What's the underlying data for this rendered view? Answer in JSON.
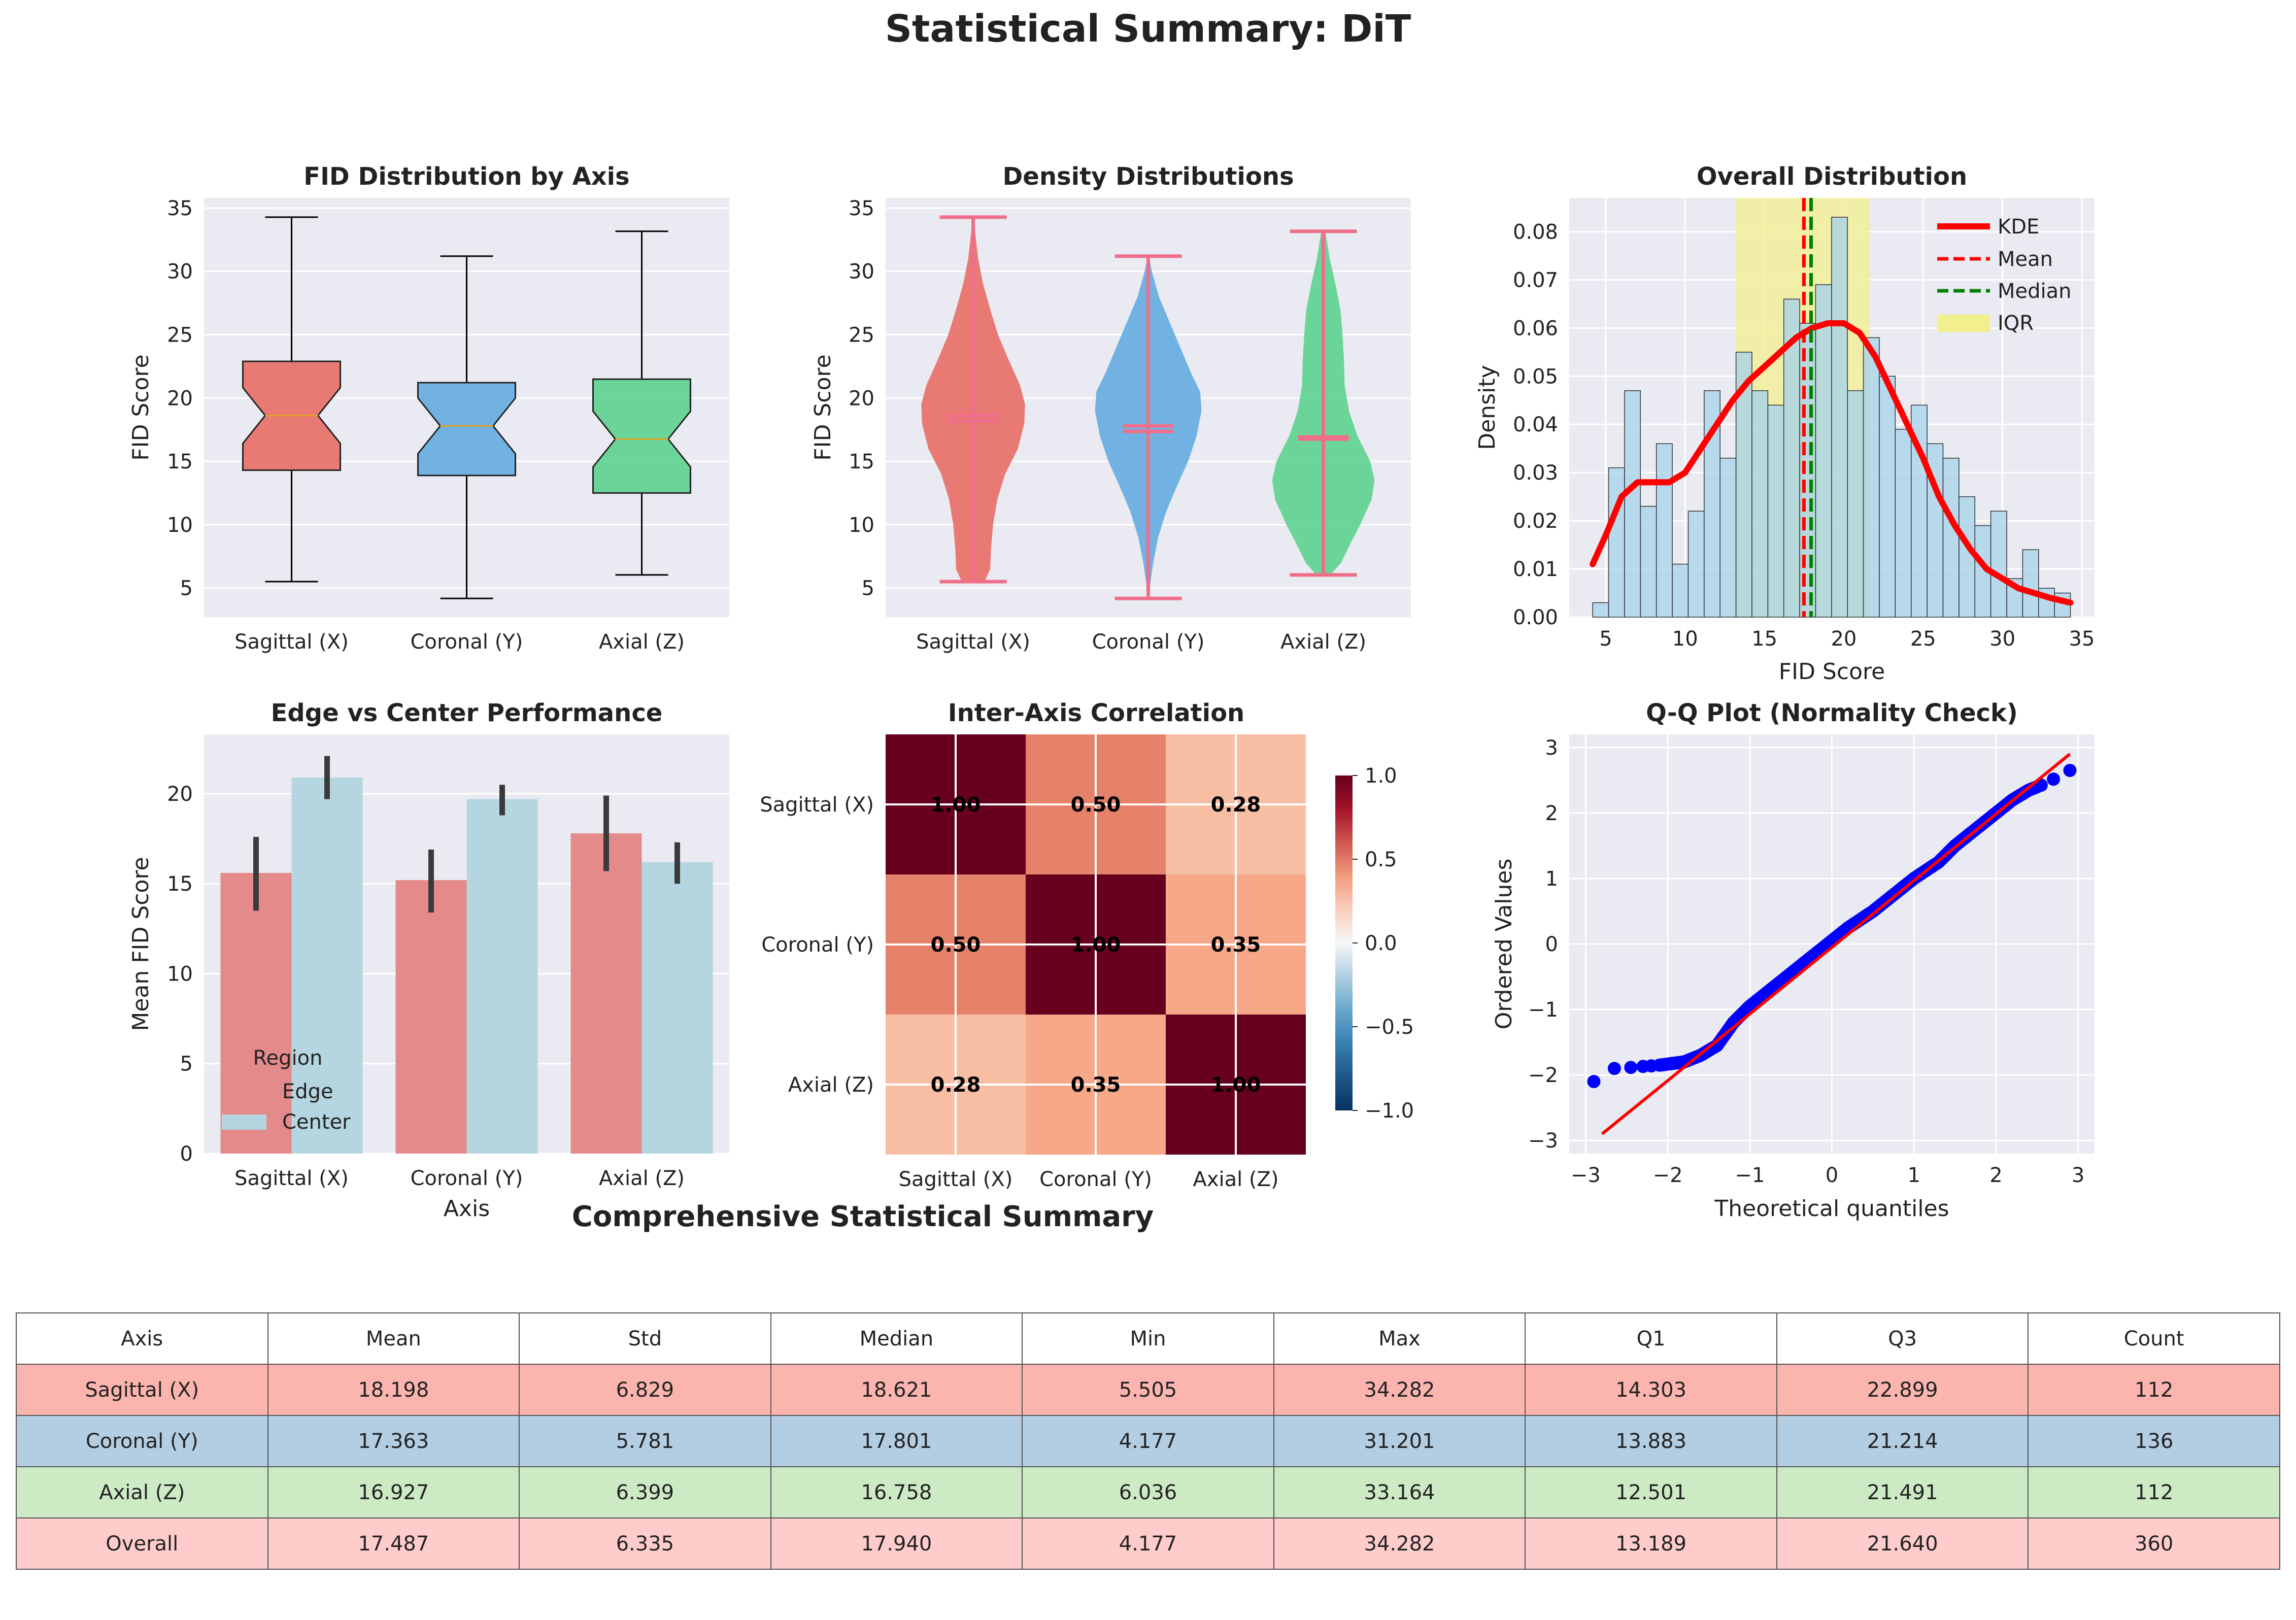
{
  "figure": {
    "title": "Statistical Summary: DiT",
    "table_title": "Comprehensive Statistical Summary"
  },
  "colors": {
    "sagittal": "#e8736c",
    "coronal": "#6aafe0",
    "axial": "#64d494",
    "panel_bg": "#eaeaf2",
    "edge_bar": "#e48a8a",
    "center_bar": "#b5d6e1",
    "hist_fill": "#a8d3ea",
    "kde": "#ff0000",
    "qq_points": "#0000ff"
  },
  "chart_data": [
    {
      "type": "box",
      "title": "FID Distribution by Axis",
      "xlabel": "",
      "ylabel": "FID Score",
      "categories": [
        "Sagittal (X)",
        "Coronal (Y)",
        "Axial (Z)"
      ],
      "boxes": [
        {
          "min": 5.505,
          "q1": 14.303,
          "median": 18.621,
          "q3": 22.899,
          "max": 34.282
        },
        {
          "min": 4.177,
          "q1": 13.883,
          "median": 17.801,
          "q3": 21.214,
          "max": 31.201
        },
        {
          "min": 6.036,
          "q1": 12.501,
          "median": 16.758,
          "q3": 21.491,
          "max": 33.164
        }
      ],
      "ylim": [
        2.7,
        35.8
      ],
      "yticks": [
        5,
        10,
        15,
        20,
        25,
        30,
        35
      ],
      "grid": true
    },
    {
      "type": "violin",
      "title": "Density Distributions",
      "xlabel": "",
      "ylabel": "FID Score",
      "categories": [
        "Sagittal (X)",
        "Coronal (Y)",
        "Axial (Z)"
      ],
      "violins": [
        {
          "min": 5.505,
          "max": 34.282,
          "mean": 18.198,
          "median": 18.621,
          "profile": [
            [
              5.505,
              0.16
            ],
            [
              6.5,
              0.24
            ],
            [
              8,
              0.25
            ],
            [
              10,
              0.28
            ],
            [
              12,
              0.34
            ],
            [
              14,
              0.45
            ],
            [
              16,
              0.63
            ],
            [
              18,
              0.72
            ],
            [
              19.5,
              0.73
            ],
            [
              21,
              0.66
            ],
            [
              23,
              0.5
            ],
            [
              25,
              0.35
            ],
            [
              27,
              0.24
            ],
            [
              29,
              0.14
            ],
            [
              31,
              0.07
            ],
            [
              33,
              0.03
            ],
            [
              34.282,
              0.01
            ]
          ]
        },
        {
          "min": 4.177,
          "max": 31.201,
          "mean": 17.363,
          "median": 17.801,
          "profile": [
            [
              4.177,
              0.01
            ],
            [
              5,
              0.02
            ],
            [
              7,
              0.07
            ],
            [
              9,
              0.14
            ],
            [
              11,
              0.25
            ],
            [
              13,
              0.4
            ],
            [
              15,
              0.56
            ],
            [
              17,
              0.68
            ],
            [
              19,
              0.75
            ],
            [
              20.5,
              0.73
            ],
            [
              22,
              0.6
            ],
            [
              24,
              0.45
            ],
            [
              26,
              0.3
            ],
            [
              28,
              0.15
            ],
            [
              30,
              0.05
            ],
            [
              31.201,
              0.01
            ]
          ]
        },
        {
          "min": 6.036,
          "max": 33.164,
          "mean": 16.927,
          "median": 16.758,
          "profile": [
            [
              6.036,
              0.1
            ],
            [
              7,
              0.25
            ],
            [
              8.5,
              0.38
            ],
            [
              10,
              0.52
            ],
            [
              12,
              0.68
            ],
            [
              13.5,
              0.72
            ],
            [
              15,
              0.66
            ],
            [
              17,
              0.48
            ],
            [
              19,
              0.36
            ],
            [
              21,
              0.3
            ],
            [
              23,
              0.29
            ],
            [
              25,
              0.27
            ],
            [
              27,
              0.24
            ],
            [
              29,
              0.17
            ],
            [
              31,
              0.09
            ],
            [
              33.164,
              0.03
            ]
          ]
        }
      ],
      "ylim": [
        2.7,
        35.8
      ],
      "yticks": [
        5,
        10,
        15,
        20,
        25,
        30,
        35
      ],
      "grid": true
    },
    {
      "type": "histogram",
      "title": "Overall Distribution",
      "xlabel": "FID Score",
      "ylabel": "Density",
      "bins": {
        "start": 4.177,
        "width": 1.0035,
        "densities": [
          0.003,
          0.031,
          0.047,
          0.023,
          0.036,
          0.011,
          0.022,
          0.047,
          0.033,
          0.055,
          0.047,
          0.044,
          0.066,
          0.061,
          0.069,
          0.083,
          0.047,
          0.058,
          0.05,
          0.039,
          0.044,
          0.036,
          0.033,
          0.025,
          0.019,
          0.022,
          0.008,
          0.014,
          0.006,
          0.005
        ]
      },
      "kde": [
        [
          4.177,
          0.011
        ],
        [
          5,
          0.017
        ],
        [
          6,
          0.025
        ],
        [
          7,
          0.028
        ],
        [
          8,
          0.028
        ],
        [
          9,
          0.028
        ],
        [
          10,
          0.03
        ],
        [
          11,
          0.035
        ],
        [
          12,
          0.04
        ],
        [
          13,
          0.045
        ],
        [
          14,
          0.049
        ],
        [
          15,
          0.052
        ],
        [
          16,
          0.055
        ],
        [
          17,
          0.058
        ],
        [
          18,
          0.06
        ],
        [
          19,
          0.061
        ],
        [
          20,
          0.061
        ],
        [
          21,
          0.059
        ],
        [
          22,
          0.054
        ],
        [
          23,
          0.047
        ],
        [
          24,
          0.04
        ],
        [
          25,
          0.033
        ],
        [
          26,
          0.025
        ],
        [
          27,
          0.019
        ],
        [
          28,
          0.014
        ],
        [
          29,
          0.01
        ],
        [
          30,
          0.008
        ],
        [
          31,
          0.006
        ],
        [
          32,
          0.005
        ],
        [
          33,
          0.004
        ],
        [
          34.282,
          0.003
        ]
      ],
      "mean": 17.487,
      "median": 17.94,
      "iqr": [
        13.189,
        21.64
      ],
      "legend": [
        "KDE",
        "Mean",
        "Median",
        "IQR"
      ],
      "legend_placement": "top-right",
      "xlim": [
        2.7,
        35.8
      ],
      "xticks": [
        5,
        10,
        15,
        20,
        25,
        30,
        35
      ],
      "ylim": [
        0,
        0.087
      ],
      "yticks": [
        0,
        0.01,
        0.02,
        0.03,
        0.04,
        0.05,
        0.06,
        0.07,
        0.08
      ],
      "grid": true
    },
    {
      "type": "bar",
      "title": "Edge vs Center Performance",
      "xlabel": "Axis",
      "ylabel": "Mean FID Score",
      "categories": [
        "Sagittal (X)",
        "Coronal (Y)",
        "Axial (Z)"
      ],
      "series": [
        {
          "name": "Edge",
          "values": [
            15.6,
            15.2,
            17.8
          ],
          "err_low": [
            13.5,
            13.4,
            15.7
          ],
          "err_high": [
            17.6,
            16.9,
            19.9
          ]
        },
        {
          "name": "Center",
          "values": [
            20.9,
            19.7,
            16.2
          ],
          "err_low": [
            19.7,
            18.8,
            15.0
          ],
          "err_high": [
            22.1,
            20.5,
            17.3
          ]
        }
      ],
      "legend_title": "Region",
      "legend_placement": "lower-left",
      "ylim": [
        0,
        23.3
      ],
      "yticks": [
        0,
        5,
        10,
        15,
        20
      ],
      "grid": true
    },
    {
      "type": "heatmap",
      "title": "Inter-Axis Correlation",
      "rows": [
        "Sagittal (X)",
        "Coronal (Y)",
        "Axial (Z)"
      ],
      "cols": [
        "Sagittal (X)",
        "Coronal (Y)",
        "Axial (Z)"
      ],
      "values": [
        [
          1.0,
          0.5,
          0.28
        ],
        [
          0.5,
          1.0,
          0.35
        ],
        [
          0.28,
          0.35,
          1.0
        ]
      ],
      "labels": [
        [
          "1.00",
          "0.50",
          "0.28"
        ],
        [
          "0.50",
          "1.00",
          "0.35"
        ],
        [
          "0.28",
          "0.35",
          "1.00"
        ]
      ],
      "colorbar_range": [
        -1,
        1
      ],
      "colorbar_ticks": [
        "1.0",
        "0.5",
        "0.0",
        "−0.5",
        "−1.0"
      ],
      "colormap": "RdBu_r"
    },
    {
      "type": "scatter",
      "title": "Q-Q Plot (Normality Check)",
      "xlabel": "Theoretical quantiles",
      "ylabel": "Ordered Values",
      "reference_line": [
        [
          -2.8,
          -2.9
        ],
        [
          2.9,
          2.9
        ]
      ],
      "curve": [
        [
          -2.9,
          -2.1
        ],
        [
          -2.65,
          -1.9
        ],
        [
          -2.4,
          -1.88
        ],
        [
          -2.1,
          -1.85
        ],
        [
          -1.8,
          -1.8
        ],
        [
          -1.6,
          -1.7
        ],
        [
          -1.4,
          -1.55
        ],
        [
          -1.2,
          -1.2
        ],
        [
          -1.0,
          -0.95
        ],
        [
          -0.7,
          -0.65
        ],
        [
          -0.4,
          -0.35
        ],
        [
          -0.1,
          -0.05
        ],
        [
          0.2,
          0.25
        ],
        [
          0.5,
          0.5
        ],
        [
          0.8,
          0.8
        ],
        [
          1.0,
          1.0
        ],
        [
          1.3,
          1.25
        ],
        [
          1.5,
          1.5
        ],
        [
          1.8,
          1.8
        ],
        [
          2.0,
          2.0
        ],
        [
          2.2,
          2.2
        ],
        [
          2.4,
          2.35
        ],
        [
          2.6,
          2.45
        ],
        [
          2.9,
          2.65
        ]
      ],
      "xlim": [
        -3.2,
        3.2
      ],
      "ylim": [
        -3.2,
        3.2
      ],
      "xticks": [
        -3,
        -2,
        -1,
        0,
        1,
        2,
        3
      ],
      "yticks": [
        -3,
        -2,
        -1,
        0,
        1,
        2,
        3
      ],
      "grid": true
    }
  ],
  "table": {
    "headers": [
      "Axis",
      "Mean",
      "Std",
      "Median",
      "Min",
      "Max",
      "Q1",
      "Q3",
      "Count"
    ],
    "rows": [
      {
        "cells": [
          "Sagittal (X)",
          "18.198",
          "6.829",
          "18.621",
          "5.505",
          "34.282",
          "14.303",
          "22.899",
          "112"
        ],
        "color": "#fbb4ae"
      },
      {
        "cells": [
          "Coronal (Y)",
          "17.363",
          "5.781",
          "17.801",
          "4.177",
          "31.201",
          "13.883",
          "21.214",
          "136"
        ],
        "color": "#b3cde3"
      },
      {
        "cells": [
          "Axial (Z)",
          "16.927",
          "6.399",
          "16.758",
          "6.036",
          "33.164",
          "12.501",
          "21.491",
          "112"
        ],
        "color": "#ccebc5"
      },
      {
        "cells": [
          "Overall",
          "17.487",
          "6.335",
          "17.940",
          "4.177",
          "34.282",
          "13.189",
          "21.640",
          "360"
        ],
        "color": "#ffcccc"
      }
    ]
  }
}
